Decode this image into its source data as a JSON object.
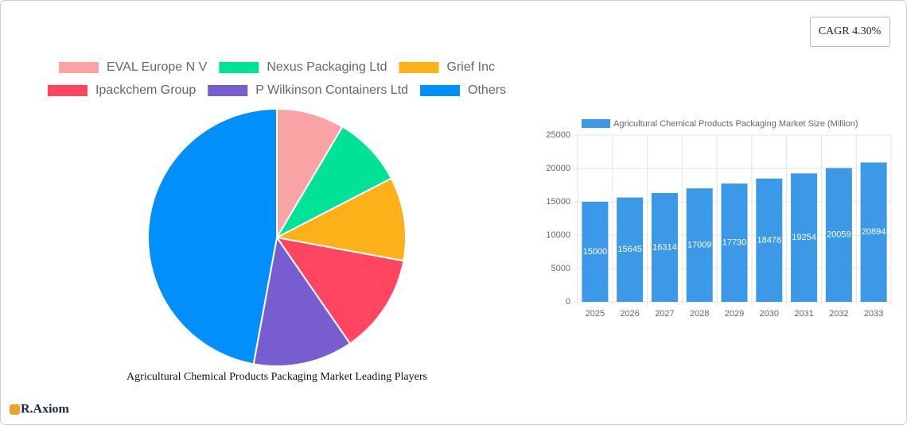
{
  "cagr": "CAGR 4.30%",
  "logo": "R.Axiom",
  "chart_data": [
    {
      "type": "pie",
      "title": "Agricultural Chemical Products Packaging Market Leading Players",
      "categories": [
        "EVAL Europe N V",
        "Nexus Packaging Ltd",
        "Grief Inc",
        "Ipackchem Group",
        "P  Wilkinson Containers Ltd",
        "Others"
      ],
      "values": [
        8.5,
        8.9,
        10.5,
        12.5,
        12.5,
        47.1
      ],
      "colors": [
        "#f9a3a4",
        "#00e396",
        "#feb019",
        "#ff4560",
        "#775dd0",
        "#008ffb"
      ],
      "legend": "top"
    },
    {
      "type": "bar",
      "categories": [
        "2025",
        "2026",
        "2027",
        "2028",
        "2029",
        "2030",
        "2031",
        "2032",
        "2033"
      ],
      "series": [
        {
          "name": "Agricultural Chemical Products Packaging Market Size (Million)",
          "color": "#3b99e8",
          "values": [
            15000,
            15645,
            16314,
            17009,
            17730,
            18478,
            19254,
            20059,
            20894
          ]
        }
      ],
      "ylim": [
        0,
        25000
      ],
      "yticks": [
        0,
        5000,
        10000,
        15000,
        20000,
        25000
      ],
      "grid": true,
      "legend": "top"
    }
  ]
}
